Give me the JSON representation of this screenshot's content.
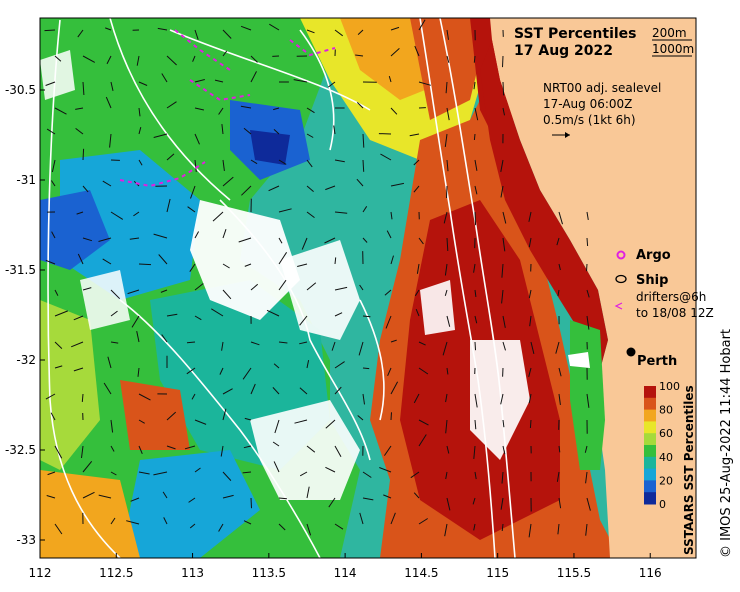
{
  "title": "SST Percentiles",
  "date": "17 Aug 2022",
  "contour_legend": [
    "200m",
    "1000m"
  ],
  "current_info": [
    "NRT00 adj. sealevel",
    "17-Aug 06:00Z",
    "0.5m/s (1kt 6h)"
  ],
  "legend": {
    "argo": "Argo",
    "ship": "Ship",
    "drifters": [
      "drifters@6h",
      "to 18/08 12Z"
    ]
  },
  "city": "Perth",
  "colorbar": {
    "label": "SSTAARS SST Percentiles",
    "ticks": [
      "100",
      "80",
      "60",
      "40",
      "20",
      "0"
    ],
    "colors": [
      "#b5130c",
      "#d9541a",
      "#f2a61e",
      "#e8e629",
      "#a6da3b",
      "#35bf3c",
      "#1bb59b",
      "#16a6d8",
      "#1a62d1",
      "#0e2a9a"
    ]
  },
  "credit": "© IMOS 25-Aug-2022 11:44 Hobart",
  "axes": {
    "x_ticks": [
      "112",
      "112.5",
      "113",
      "113.5",
      "114",
      "114.5",
      "115",
      "115.5",
      "116"
    ],
    "y_ticks": [
      "-30.5",
      "-31",
      "-31.5",
      "-32",
      "-32.5",
      "-33"
    ],
    "xlim": [
      112,
      116.3
    ],
    "ylim": [
      -33.1,
      -30.1
    ]
  },
  "land_color": "#f9c897"
}
